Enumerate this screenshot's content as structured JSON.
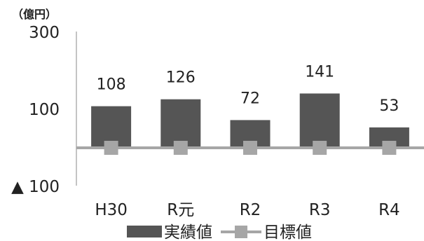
{
  "chart_data": {
    "type": "bar",
    "unit_label": "（億円）",
    "categories": [
      "H30",
      "R元",
      "R2",
      "R3",
      "R4"
    ],
    "y_ticks": [
      {
        "value": 300,
        "label": "300"
      },
      {
        "value": 100,
        "label": "100"
      },
      {
        "value": -100,
        "label": "▲ 100"
      }
    ],
    "ylim": [
      -100,
      300
    ],
    "grid": false,
    "legend_position": "bottom",
    "series": [
      {
        "name": "実績値",
        "kind": "bar",
        "color": "#555555",
        "values": [
          108,
          126,
          72,
          141,
          53
        ],
        "labels": [
          "108",
          "126",
          "72",
          "141",
          "53"
        ]
      },
      {
        "name": "目標値",
        "kind": "line",
        "color": "#a6a6a6",
        "marker": "square",
        "values": [
          0,
          0,
          0,
          0,
          0
        ]
      }
    ]
  }
}
